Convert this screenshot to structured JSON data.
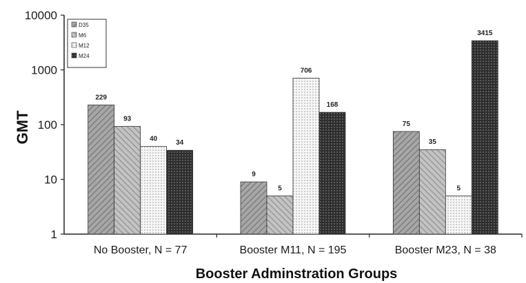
{
  "chart_data": {
    "type": "bar",
    "title": "",
    "xlabel": "Booster Adminstration Groups",
    "ylabel": "GMT",
    "yscale": "log",
    "ylim": [
      1,
      10000
    ],
    "yticks": [
      "1",
      "10",
      "100",
      "1000",
      "10000"
    ],
    "categories": [
      "No Booster, N = 77",
      "Booster M11, N = 195",
      "Booster M23, N = 38"
    ],
    "series": [
      {
        "name": "D35",
        "values": [
          229,
          9,
          75
        ],
        "labels": [
          "229",
          "9",
          "75"
        ],
        "color": "#9a9a9a",
        "pattern": "diag"
      },
      {
        "name": "M6",
        "values": [
          93,
          5,
          35
        ],
        "labels": [
          "93",
          "5",
          "35"
        ],
        "color": "#b5b5b5",
        "pattern": "diag"
      },
      {
        "name": "M12",
        "values": [
          40,
          706,
          5
        ],
        "labels": [
          "40",
          "706",
          "5"
        ],
        "color": "#f2f2f2",
        "pattern": "dots"
      },
      {
        "name": "M24",
        "values": [
          34,
          168,
          3415
        ],
        "labels": [
          "34",
          "168",
          "3415"
        ],
        "color": "#3c3c3c",
        "pattern": "cross"
      }
    ],
    "legend": "top-left",
    "grid": false
  }
}
